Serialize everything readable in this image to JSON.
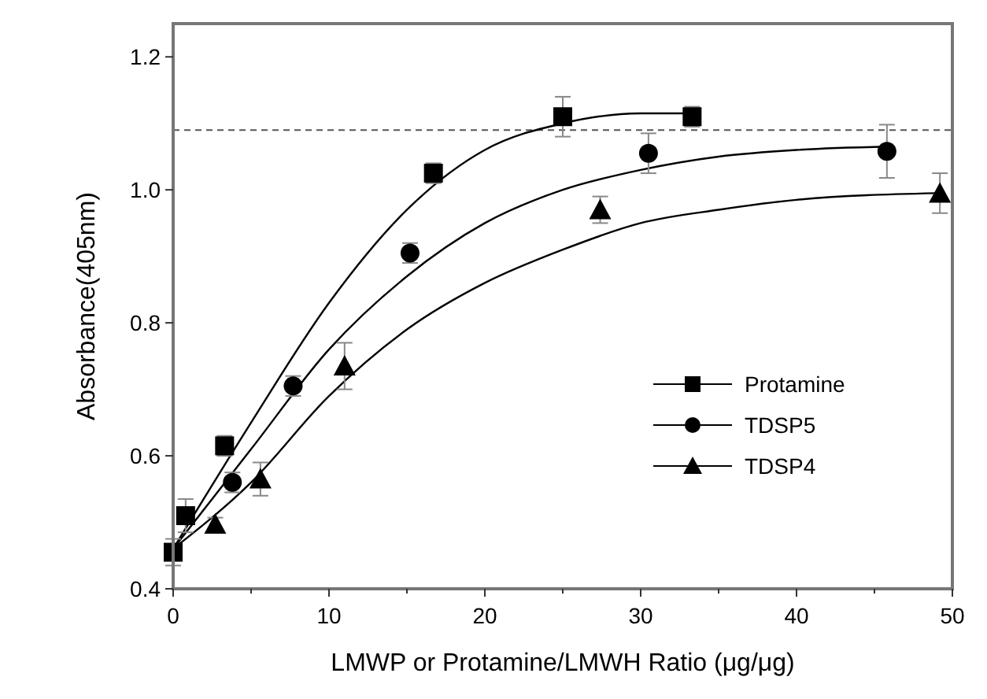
{
  "chart_data": {
    "type": "scatter",
    "xlabel": "LMWP or Protamine/LMWH Ratio (μg/μg)",
    "ylabel": "Absorbance(405nm)",
    "xlim": [
      0,
      50
    ],
    "ylim": [
      0.4,
      1.25
    ],
    "xticks": [
      0,
      {
        "value": 5,
        "label": null
      },
      10,
      {
        "value": 15,
        "label": null
      },
      20,
      {
        "value": 25,
        "label": null
      },
      30,
      {
        "value": 35,
        "label": null
      },
      40,
      {
        "value": 45,
        "label": null
      },
      50
    ],
    "yticks": [
      0.4,
      0.6,
      0.8,
      {
        "value": 1,
        "label": "1.0"
      },
      1.2
    ],
    "ref_lines": [
      {
        "axis": "y",
        "value": 1.09,
        "line_style": "dashed",
        "color": "#555555"
      }
    ],
    "legend": "bottom right",
    "series": [
      {
        "name": "Protamine",
        "marker": "square",
        "color": "#000000",
        "x": [
          0,
          0.8,
          3.3,
          16.7,
          25,
          33.3
        ],
        "values": [
          0.455,
          0.51,
          0.615,
          1.025,
          1.11,
          1.11
        ],
        "errors": [
          0.02,
          0.025,
          0.015,
          0.015,
          0.03,
          0.015
        ]
      },
      {
        "name": "TDSP5",
        "marker": "circle",
        "color": "#000000",
        "x": [
          3.8,
          7.7,
          15.2,
          30.5,
          45.8
        ],
        "values": [
          0.56,
          0.705,
          0.905,
          1.055,
          1.058
        ],
        "errors": [
          0.015,
          0.015,
          0.015,
          0.03,
          0.04
        ]
      },
      {
        "name": "TDSP4",
        "marker": "triangle",
        "color": "#000000",
        "x": [
          2.7,
          5.6,
          11,
          27.4,
          49.2
        ],
        "values": [
          0.497,
          0.565,
          0.735,
          0.97,
          0.995
        ],
        "errors": [
          0.01,
          0.025,
          0.035,
          0.02,
          0.03
        ]
      },
      {
        "type": "line",
        "marker": "none",
        "color": "#000000",
        "x": [
          0,
          5,
          10,
          15,
          20,
          25,
          30,
          33.3
        ],
        "values": [
          0.46,
          0.65,
          0.83,
          0.97,
          1.06,
          1.1,
          1.115,
          1.115
        ]
      },
      {
        "type": "line",
        "marker": "none",
        "color": "#000000",
        "x": [
          0,
          5,
          10,
          15,
          20,
          25,
          30,
          35,
          40,
          45.8
        ],
        "values": [
          0.46,
          0.61,
          0.76,
          0.87,
          0.95,
          1.0,
          1.03,
          1.05,
          1.06,
          1.065
        ]
      },
      {
        "type": "line",
        "marker": "none",
        "color": "#000000",
        "x": [
          0,
          5,
          10,
          15,
          20,
          25,
          30,
          35,
          40,
          49
        ],
        "values": [
          0.46,
          0.56,
          0.69,
          0.79,
          0.86,
          0.91,
          0.95,
          0.97,
          0.985,
          0.995
        ]
      }
    ]
  }
}
